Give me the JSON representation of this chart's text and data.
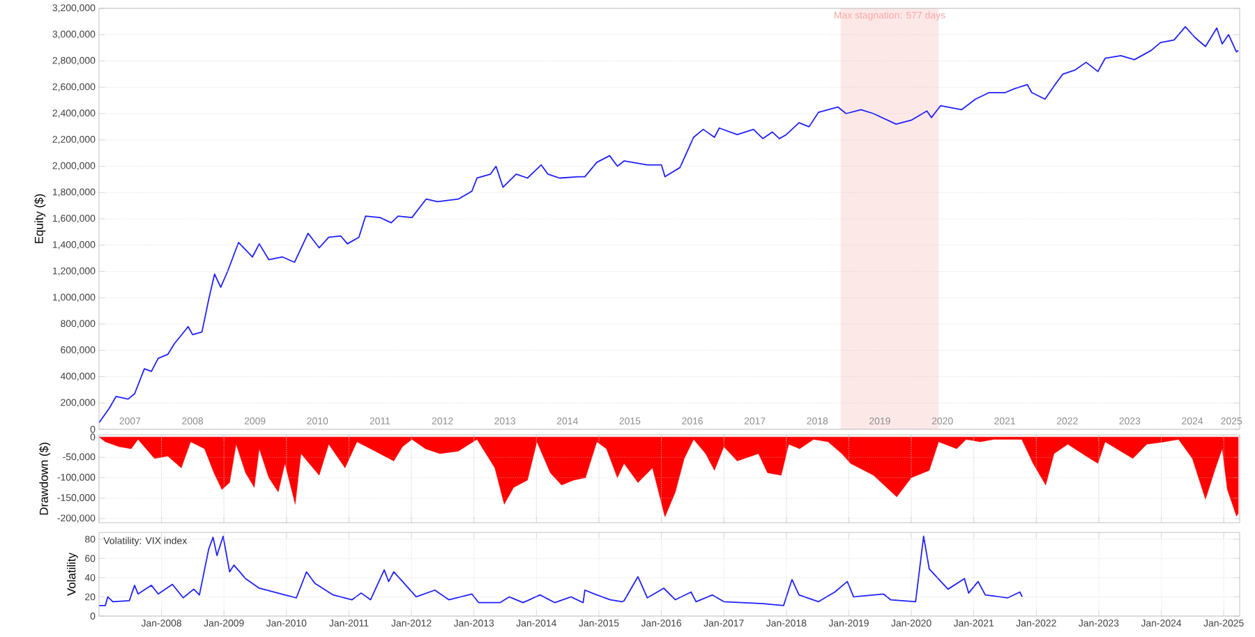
{
  "chart_data": [
    {
      "type": "line",
      "ylabel": "Equity ($)",
      "xlim": [
        "2007-01-01",
        "2025-04-04"
      ],
      "ylim": [
        0,
        3200000
      ],
      "grid": true,
      "xticks": [
        {
          "value": "2007-07-01",
          "label": "2007"
        },
        {
          "value": "2008-01-01",
          "label": null
        },
        {
          "value": "2008-07-01",
          "label": "2008"
        },
        {
          "value": "2009-01-01",
          "label": null
        },
        {
          "value": "2009-07-01",
          "label": "2009"
        },
        {
          "value": "2010-01-01",
          "label": null
        },
        {
          "value": "2010-07-01",
          "label": "2010"
        },
        {
          "value": "2011-01-01",
          "label": null
        },
        {
          "value": "2011-07-01",
          "label": "2011"
        },
        {
          "value": "2012-01-01",
          "label": null
        },
        {
          "value": "2012-07-01",
          "label": "2012"
        },
        {
          "value": "2013-01-01",
          "label": null
        },
        {
          "value": "2013-07-01",
          "label": "2013"
        },
        {
          "value": "2014-01-01",
          "label": null
        },
        {
          "value": "2014-07-01",
          "label": "2014"
        },
        {
          "value": "2015-01-01",
          "label": null
        },
        {
          "value": "2015-07-01",
          "label": "2015"
        },
        {
          "value": "2016-01-01",
          "label": null
        },
        {
          "value": "2016-07-01",
          "label": "2016"
        },
        {
          "value": "2017-01-01",
          "label": null
        },
        {
          "value": "2017-07-01",
          "label": "2017"
        },
        {
          "value": "2018-01-01",
          "label": null
        },
        {
          "value": "2018-07-01",
          "label": "2018"
        },
        {
          "value": "2019-01-01",
          "label": null
        },
        {
          "value": "2019-07-01",
          "label": "2019"
        },
        {
          "value": "2020-01-01",
          "label": null
        },
        {
          "value": "2020-07-01",
          "label": "2020"
        },
        {
          "value": "2021-01-01",
          "label": null
        },
        {
          "value": "2021-07-01",
          "label": "2021"
        },
        {
          "value": "2022-01-01",
          "label": null
        },
        {
          "value": "2022-07-01",
          "label": "2022"
        },
        {
          "value": "2023-01-01",
          "label": null
        },
        {
          "value": "2023-07-01",
          "label": "2023"
        },
        {
          "value": "2024-01-01",
          "label": null
        },
        {
          "value": "2024-07-01",
          "label": "2024"
        },
        {
          "value": "2025-01-01",
          "label": null
        },
        {
          "value": "2025-02-15",
          "label": "2025"
        }
      ],
      "yticks": [
        {
          "value": 0,
          "label": "0"
        },
        {
          "value": 200000,
          "label": "200,000"
        },
        {
          "value": 400000,
          "label": "400,000"
        },
        {
          "value": 600000,
          "label": "600,000"
        },
        {
          "value": 800000,
          "label": "800,000"
        },
        {
          "value": 1000000,
          "label": "1,000,000"
        },
        {
          "value": 1200000,
          "label": "1,200,000"
        },
        {
          "value": 1400000,
          "label": "1,400,000"
        },
        {
          "value": 1600000,
          "label": "1,600,000"
        },
        {
          "value": 1800000,
          "label": "1,800,000"
        },
        {
          "value": 2000000,
          "label": "2,000,000"
        },
        {
          "value": 2200000,
          "label": "2,200,000"
        },
        {
          "value": 2400000,
          "label": "2,400,000"
        },
        {
          "value": 2600000,
          "label": "2,600,000"
        },
        {
          "value": 2800000,
          "label": "2,800,000"
        },
        {
          "value": 3000000,
          "label": "3,000,000"
        },
        {
          "value": 3200000,
          "label": "3,200,000"
        }
      ],
      "bands": [
        {
          "axis": "x",
          "from": "2018-11-14",
          "to": "2020-06-09",
          "label": "Max stagnation: 577 days",
          "color": "#fde8e8"
        }
      ],
      "series": [
        {
          "color": "#1f1fff",
          "x": [
            "2007-01-01",
            "2007-03-02",
            "2007-04-11",
            "2007-06-20",
            "2007-07-28",
            "2007-09-23",
            "2007-11-03",
            "2007-12-13",
            "2008-02-07",
            "2008-03-16",
            "2008-06-05",
            "2008-07-01",
            "2008-08-25",
            "2008-10-04",
            "2008-11-07",
            "2008-12-13",
            "2009-01-22",
            "2009-03-27",
            "2009-06-16",
            "2009-07-26",
            "2009-09-20",
            "2009-12-09",
            "2010-02-17",
            "2010-05-07",
            "2010-07-11",
            "2010-09-05",
            "2010-11-14",
            "2010-12-23",
            "2011-02-28",
            "2011-04-08",
            "2011-07-01",
            "2011-09-05",
            "2011-10-15",
            "2012-01-04",
            "2012-03-27",
            "2012-06-02",
            "2012-10-01",
            "2012-12-20",
            "2013-01-19",
            "2013-04-08",
            "2013-05-10",
            "2013-06-20",
            "2013-09-05",
            "2013-11-10",
            "2014-01-29",
            "2014-03-09",
            "2014-05-17",
            "2014-09-02",
            "2014-10-11",
            "2014-12-20",
            "2015-03-05",
            "2015-04-19",
            "2015-05-28",
            "2015-10-11",
            "2016-01-01",
            "2016-01-22",
            "2016-04-19",
            "2016-07-08",
            "2016-09-02",
            "2016-11-07",
            "2016-12-05",
            "2017-03-20",
            "2017-06-23",
            "2017-08-17",
            "2017-10-11",
            "2017-11-21",
            "2018-01-01",
            "2018-03-16",
            "2018-05-14",
            "2018-07-08",
            "2018-10-29",
            "2018-12-16",
            "2019-03-13",
            "2019-05-25",
            "2019-10-04",
            "2020-01-01",
            "2020-04-01",
            "2020-04-28",
            "2020-06-20",
            "2020-10-22",
            "2021-01-11",
            "2021-04-01",
            "2021-07-04",
            "2021-08-28",
            "2021-11-10",
            "2021-12-05",
            "2022-02-21",
            "2022-04-26",
            "2022-06-05",
            "2022-08-14",
            "2022-10-19",
            "2022-12-27",
            "2023-02-07",
            "2023-05-10",
            "2023-07-28",
            "2023-11-03",
            "2023-12-27",
            "2024-03-16",
            "2024-05-21",
            "2024-07-15",
            "2024-09-16",
            "2024-11-21",
            "2024-12-23",
            "2025-01-29",
            "2025-03-16",
            "2025-03-27"
          ],
          "values": [
            50000,
            160000,
            250000,
            230000,
            270000,
            460000,
            440000,
            540000,
            570000,
            650000,
            780000,
            720000,
            740000,
            990000,
            1180000,
            1080000,
            1200000,
            1420000,
            1310000,
            1410000,
            1290000,
            1310000,
            1270000,
            1490000,
            1380000,
            1460000,
            1470000,
            1410000,
            1460000,
            1620000,
            1610000,
            1570000,
            1620000,
            1610000,
            1750000,
            1730000,
            1750000,
            1810000,
            1910000,
            1940000,
            2000000,
            1840000,
            1940000,
            1910000,
            2010000,
            1940000,
            1910000,
            1920000,
            1920000,
            2030000,
            2080000,
            2000000,
            2040000,
            2010000,
            2010000,
            1920000,
            1990000,
            2220000,
            2280000,
            2220000,
            2290000,
            2240000,
            2280000,
            2210000,
            2260000,
            2210000,
            2240000,
            2330000,
            2300000,
            2410000,
            2450000,
            2400000,
            2430000,
            2400000,
            2320000,
            2350000,
            2420000,
            2370000,
            2460000,
            2430000,
            2510000,
            2560000,
            2560000,
            2590000,
            2620000,
            2560000,
            2510000,
            2630000,
            2700000,
            2730000,
            2790000,
            2720000,
            2820000,
            2840000,
            2810000,
            2880000,
            2940000,
            2960000,
            3060000,
            2980000,
            2910000,
            3050000,
            2930000,
            3000000,
            2870000,
            2880000
          ]
        }
      ]
    },
    {
      "type": "area",
      "ylabel": "Drawdown ($)",
      "xlim": [
        "2007-01-01",
        "2025-04-04"
      ],
      "ylim": [
        -210000,
        5000
      ],
      "grid": true,
      "tick_labels": "y",
      "xticks": [
        {
          "value": "2008-01-01",
          "label": null
        },
        {
          "value": "2009-01-01",
          "label": null
        },
        {
          "value": "2010-01-01",
          "label": null
        },
        {
          "value": "2011-01-01",
          "label": null
        },
        {
          "value": "2012-01-01",
          "label": null
        },
        {
          "value": "2013-01-01",
          "label": null
        },
        {
          "value": "2014-01-01",
          "label": null
        },
        {
          "value": "2015-01-01",
          "label": null
        },
        {
          "value": "2016-01-01",
          "label": null
        },
        {
          "value": "2017-01-01",
          "label": null
        },
        {
          "value": "2018-01-01",
          "label": null
        },
        {
          "value": "2019-01-01",
          "label": null
        },
        {
          "value": "2020-01-01",
          "label": null
        },
        {
          "value": "2021-01-01",
          "label": null
        },
        {
          "value": "2022-01-01",
          "label": null
        },
        {
          "value": "2023-01-01",
          "label": null
        },
        {
          "value": "2024-01-01",
          "label": null
        },
        {
          "value": "2025-01-01",
          "label": null
        }
      ],
      "yticks": [
        {
          "value": 0,
          "label": "0"
        },
        {
          "value": -50000,
          "label": "-50,000"
        },
        {
          "value": -100000,
          "label": "-100,000"
        },
        {
          "value": -150000,
          "label": "-150,000"
        },
        {
          "value": -200000,
          "label": "-200,000"
        }
      ],
      "series": [
        {
          "color": "#ff0000",
          "x": [
            "2007-01-01",
            "2007-02-07",
            "2007-04-28",
            "2007-07-08",
            "2007-08-17",
            "2007-11-21",
            "2008-02-07",
            "2008-04-26",
            "2008-06-20",
            "2008-09-09",
            "2008-11-03",
            "2008-12-20",
            "2009-02-03",
            "2009-03-13",
            "2009-05-07",
            "2009-06-27",
            "2009-07-26",
            "2009-09-20",
            "2009-11-14",
            "2009-12-23",
            "2010-02-21",
            "2010-03-27",
            "2010-07-11",
            "2010-09-05",
            "2010-12-09",
            "2011-02-17",
            "2011-05-07",
            "2011-09-20",
            "2011-11-10",
            "2012-01-04",
            "2012-03-23",
            "2012-06-16",
            "2012-10-01",
            "2013-01-19",
            "2013-05-03",
            "2013-06-27",
            "2013-08-21",
            "2013-11-10",
            "2014-01-04",
            "2014-03-23",
            "2014-05-28",
            "2014-08-07",
            "2014-10-15",
            "2014-12-20",
            "2015-02-14",
            "2015-04-19",
            "2015-05-28",
            "2015-08-17",
            "2015-11-10",
            "2016-01-22",
            "2016-03-23",
            "2016-05-14",
            "2016-07-08",
            "2016-09-16",
            "2016-11-07",
            "2017-01-01",
            "2017-03-20",
            "2017-07-22",
            "2017-09-13",
            "2017-12-02",
            "2018-01-15",
            "2018-03-20",
            "2018-06-09",
            "2018-09-02",
            "2018-11-21",
            "2019-01-11",
            "2019-05-25",
            "2019-10-08",
            "2020-01-01",
            "2020-04-15",
            "2020-06-09",
            "2020-09-23",
            "2020-11-17",
            "2021-02-07",
            "2021-04-28",
            "2021-10-08",
            "2021-12-13",
            "2022-02-25",
            "2022-04-15",
            "2022-07-04",
            "2022-10-19",
            "2022-12-27",
            "2023-02-07",
            "2023-07-19",
            "2023-10-08",
            "2024-01-22",
            "2024-04-11",
            "2024-07-01",
            "2024-09-16",
            "2024-11-14",
            "2024-12-23",
            "2025-01-22",
            "2025-03-16",
            "2025-03-27"
          ],
          "values": [
            0,
            -12000,
            -24000,
            -29000,
            -6000,
            -53000,
            -47000,
            -76000,
            -12000,
            -29000,
            -88000,
            -129000,
            -112000,
            -18000,
            -88000,
            -124000,
            -29000,
            -100000,
            -135000,
            -65000,
            -165000,
            -41000,
            -94000,
            -18000,
            -76000,
            -12000,
            -29000,
            -59000,
            -24000,
            -6000,
            -29000,
            -41000,
            -35000,
            -6000,
            -76000,
            -165000,
            -124000,
            -106000,
            -12000,
            -88000,
            -118000,
            -106000,
            -100000,
            -12000,
            -29000,
            -100000,
            -65000,
            -112000,
            -76000,
            -196000,
            -135000,
            -53000,
            -6000,
            -41000,
            -82000,
            -24000,
            -59000,
            -41000,
            -88000,
            -94000,
            -18000,
            -29000,
            -6000,
            -12000,
            -41000,
            -65000,
            -94000,
            -147000,
            -100000,
            -82000,
            -12000,
            -29000,
            -6000,
            -12000,
            -6000,
            -6000,
            -65000,
            -118000,
            -41000,
            -18000,
            -47000,
            -65000,
            -12000,
            -53000,
            -18000,
            -12000,
            -6000,
            -53000,
            -153000,
            -76000,
            -29000,
            -129000,
            -194000,
            -188000
          ]
        }
      ]
    },
    {
      "type": "line",
      "title": "Volatility: VIX index",
      "ylabel": "Volatility",
      "xlim": [
        "2007-01-01",
        "2025-04-04"
      ],
      "ylim": [
        0,
        87
      ],
      "grid": true,
      "xticks": [
        {
          "value": "2008-01-01",
          "label": "Jan-2008"
        },
        {
          "value": "2009-01-01",
          "label": "Jan-2009"
        },
        {
          "value": "2010-01-01",
          "label": "Jan-2010"
        },
        {
          "value": "2011-01-01",
          "label": "Jan-2011"
        },
        {
          "value": "2012-01-01",
          "label": "Jan-2012"
        },
        {
          "value": "2013-01-01",
          "label": "Jan-2013"
        },
        {
          "value": "2014-01-01",
          "label": "Jan-2014"
        },
        {
          "value": "2015-01-01",
          "label": "Jan-2015"
        },
        {
          "value": "2016-01-01",
          "label": "Jan-2016"
        },
        {
          "value": "2017-01-01",
          "label": "Jan-2017"
        },
        {
          "value": "2018-01-01",
          "label": "Jan-2018"
        },
        {
          "value": "2019-01-01",
          "label": "Jan-2019"
        },
        {
          "value": "2020-01-01",
          "label": "Jan-2020"
        },
        {
          "value": "2021-01-01",
          "label": "Jan-2021"
        },
        {
          "value": "2022-01-01",
          "label": "Jan-2022"
        },
        {
          "value": "2023-01-01",
          "label": "Jan-2023"
        },
        {
          "value": "2024-01-01",
          "label": "Jan-2024"
        },
        {
          "value": "2025-01-01",
          "label": "Jan-2025"
        }
      ],
      "yticks": [
        0,
        20,
        40,
        60,
        80
      ],
      "series": [
        {
          "color": "#1f1fff",
          "x": [
            "2007-01-01",
            "2007-02-07",
            "2007-02-21",
            "2007-03-23",
            "2007-06-27",
            "2007-07-28",
            "2007-08-17",
            "2007-11-03",
            "2007-12-13",
            "2008-03-05",
            "2008-05-07",
            "2008-07-08",
            "2008-08-10",
            "2008-10-04",
            "2008-10-29",
            "2008-11-21",
            "2008-12-27",
            "2009-02-03",
            "2009-02-28",
            "2009-05-07",
            "2009-07-26",
            "2009-12-23",
            "2010-02-28",
            "2010-04-28",
            "2010-06-16",
            "2010-10-01",
            "2011-01-19",
            "2011-03-13",
            "2011-05-07",
            "2011-07-26",
            "2011-08-21",
            "2011-09-20",
            "2011-11-10",
            "2012-01-29",
            "2012-05-17",
            "2012-08-07",
            "2012-12-20",
            "2013-01-29",
            "2013-06-02",
            "2013-07-26",
            "2013-10-15",
            "2014-01-22",
            "2014-04-19",
            "2014-07-22",
            "2014-10-01",
            "2014-10-11",
            "2014-12-20",
            "2015-03-09",
            "2015-05-17",
            "2015-05-28",
            "2015-08-17",
            "2015-10-11",
            "2016-01-15",
            "2016-03-23",
            "2016-06-23",
            "2016-07-22",
            "2016-10-26",
            "2017-01-01",
            "2017-08-17",
            "2017-12-16",
            "2018-02-03",
            "2018-03-16",
            "2018-07-08",
            "2018-10-11",
            "2018-12-23",
            "2019-01-29",
            "2019-07-22",
            "2019-09-02",
            "2020-01-26",
            "2020-03-13",
            "2020-04-15",
            "2020-08-03",
            "2020-11-07",
            "2020-12-02",
            "2021-01-26",
            "2021-03-09",
            "2021-07-19",
            "2021-09-27",
            "2021-10-11"
          ],
          "values": [
            11,
            11,
            20,
            15,
            16,
            32,
            23,
            32,
            23,
            33,
            19,
            28,
            22,
            70,
            82,
            63,
            83,
            46,
            53,
            39,
            29,
            22,
            19,
            46,
            34,
            22,
            17,
            24,
            17,
            48,
            36,
            46,
            36,
            20,
            27,
            17,
            23,
            14,
            14,
            20,
            14,
            22,
            14,
            20,
            14,
            27,
            22,
            17,
            15,
            16,
            41,
            19,
            29,
            17,
            25,
            15,
            22,
            15,
            13,
            11,
            38,
            22,
            15,
            25,
            36,
            20,
            23,
            17,
            15,
            83,
            49,
            28,
            39,
            24,
            36,
            22,
            19,
            25,
            20
          ]
        }
      ]
    }
  ]
}
